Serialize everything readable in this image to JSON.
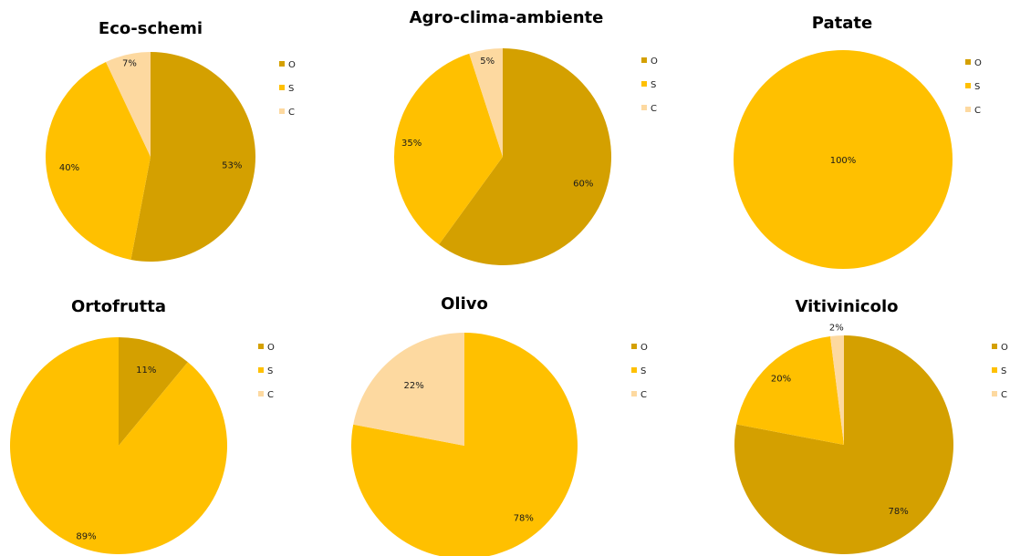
{
  "colors": {
    "O": "#d4a000",
    "S": "#ffc000",
    "C": "#fdd9a0",
    "background": "#ffffff"
  },
  "chart_data": [
    {
      "type": "pie",
      "title": "Eco-schemi",
      "categories": [
        "O",
        "S",
        "C"
      ],
      "values": [
        53,
        40,
        7
      ],
      "labels": [
        "53%",
        "40%",
        "7%"
      ],
      "legend": "right"
    },
    {
      "type": "pie",
      "title": "Agro-clima-ambiente",
      "categories": [
        "O",
        "S",
        "C"
      ],
      "values": [
        60,
        35,
        5
      ],
      "labels": [
        "60%",
        "35%",
        "5%"
      ],
      "legend": "right"
    },
    {
      "type": "pie",
      "title": "Patate",
      "categories": [
        "O",
        "S",
        "C"
      ],
      "values": [
        0,
        100,
        0
      ],
      "labels": [
        "",
        "100%",
        ""
      ],
      "legend": "right"
    },
    {
      "type": "pie",
      "title": "Ortofrutta",
      "categories": [
        "O",
        "S",
        "C"
      ],
      "values": [
        11,
        89,
        0
      ],
      "labels": [
        "11%",
        "89%",
        ""
      ],
      "legend": "right"
    },
    {
      "type": "pie",
      "title": "Olivo",
      "categories": [
        "O",
        "S",
        "C"
      ],
      "values": [
        0,
        78,
        22
      ],
      "labels": [
        "",
        "78%",
        "22%"
      ],
      "legend": "right"
    },
    {
      "type": "pie",
      "title": "Vitivinicolo",
      "categories": [
        "O",
        "S",
        "C"
      ],
      "values": [
        78,
        20,
        2
      ],
      "labels": [
        "78%",
        "20%",
        "2%"
      ],
      "legend": "right"
    }
  ]
}
